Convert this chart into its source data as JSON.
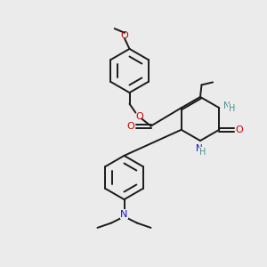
{
  "bg_color": "#ebebeb",
  "bond_color": "#1a1a1a",
  "o_color": "#cc0000",
  "n_blue_color": "#1414cc",
  "n_teal_color": "#4a9090",
  "lw": 1.4,
  "dbo": 0.05,
  "xlim": [
    0,
    10
  ],
  "ylim": [
    0,
    10
  ]
}
